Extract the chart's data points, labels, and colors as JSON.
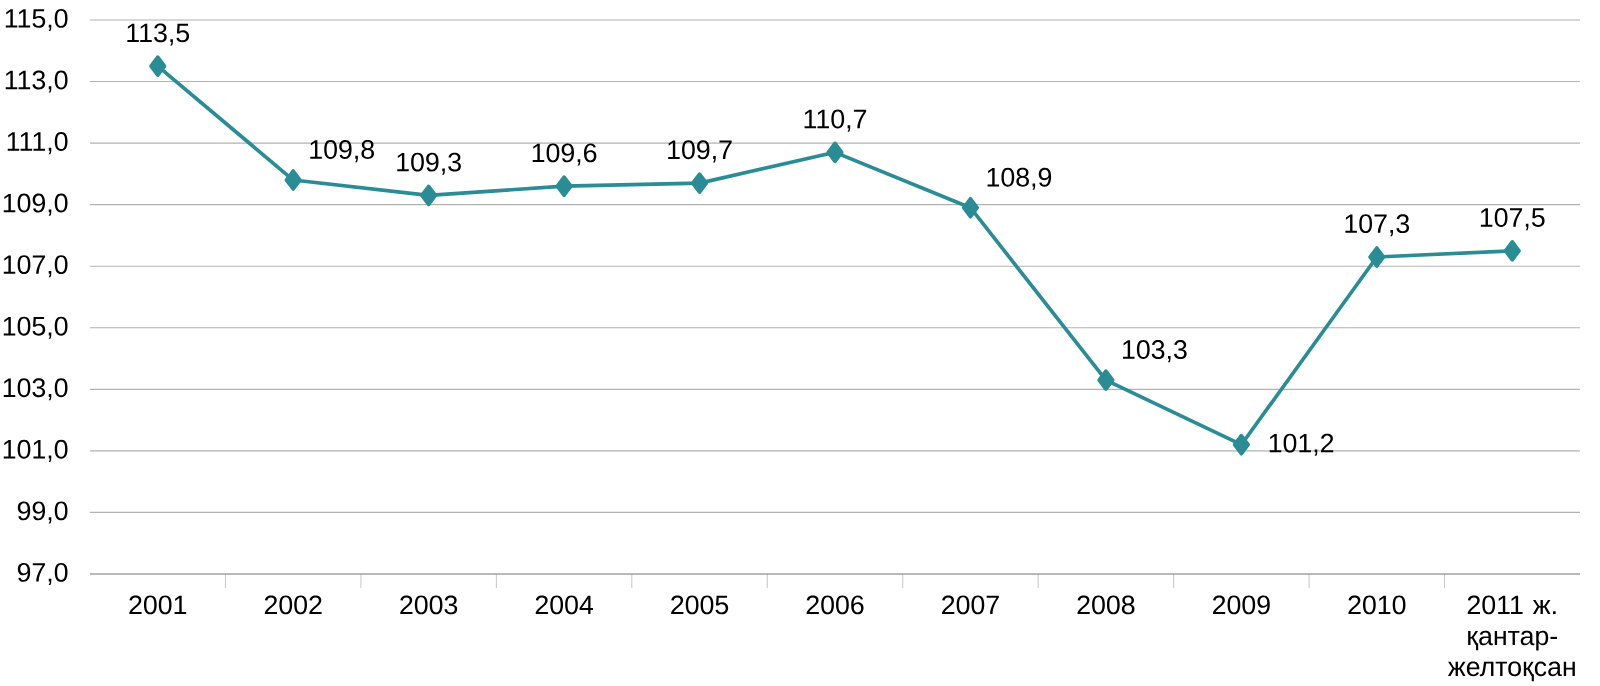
{
  "chart_data": {
    "type": "line",
    "categories": [
      "2001",
      "2002",
      "2003",
      "2004",
      "2005",
      "2006",
      "2007",
      "2008",
      "2009",
      "2010",
      "2011 ж. қантар-желтоқсан"
    ],
    "series": [
      {
        "color": "#2a8c94",
        "values": [
          113.5,
          109.8,
          109.3,
          109.6,
          109.7,
          110.7,
          108.9,
          103.3,
          101.2,
          107.3,
          107.5
        ],
        "value_labels": [
          "113,5",
          "109,8",
          "109,3",
          "109,6",
          "109,7",
          "110,7",
          "108,9",
          "103,3",
          "101,2",
          "107,3",
          "107,5"
        ]
      }
    ],
    "ylim": [
      97,
      115
    ],
    "yticks": [
      {
        "value": 97,
        "label": "97,0"
      },
      {
        "value": 99,
        "label": "99,0"
      },
      {
        "value": 101,
        "label": "101,0"
      },
      {
        "value": 103,
        "label": "103,0"
      },
      {
        "value": 105,
        "label": "105,0"
      },
      {
        "value": 107,
        "label": "107,0"
      },
      {
        "value": 109,
        "label": "109,0"
      },
      {
        "value": 111,
        "label": "111,0"
      },
      {
        "value": 113,
        "label": "113,0"
      },
      {
        "value": 115,
        "label": "115,0"
      }
    ],
    "grid": "y",
    "marker": "diamond",
    "line_style": "solid"
  }
}
